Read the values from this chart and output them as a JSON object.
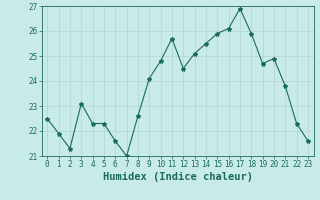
{
  "x": [
    0,
    1,
    2,
    3,
    4,
    5,
    6,
    7,
    8,
    9,
    10,
    11,
    12,
    13,
    14,
    15,
    16,
    17,
    18,
    19,
    20,
    21,
    22,
    23
  ],
  "y": [
    22.5,
    21.9,
    21.3,
    23.1,
    22.3,
    22.3,
    21.6,
    21.0,
    22.6,
    24.1,
    24.8,
    25.7,
    24.5,
    25.1,
    25.5,
    25.9,
    26.1,
    26.9,
    25.9,
    24.7,
    24.9,
    23.8,
    22.3,
    21.6
  ],
  "line_color": "#1a6b5a",
  "marker": "*",
  "marker_size": 3,
  "bg_color": "#c8eae8",
  "grid_color": "#b8d8d5",
  "xlabel": "Humidex (Indice chaleur)",
  "ylim": [
    21,
    27
  ],
  "xlim": [
    -0.5,
    23.5
  ],
  "yticks": [
    21,
    22,
    23,
    24,
    25,
    26,
    27
  ],
  "xticks": [
    0,
    1,
    2,
    3,
    4,
    5,
    6,
    7,
    8,
    9,
    10,
    11,
    12,
    13,
    14,
    15,
    16,
    17,
    18,
    19,
    20,
    21,
    22,
    23
  ],
  "tick_fontsize": 5.5,
  "xlabel_fontsize": 7.5
}
